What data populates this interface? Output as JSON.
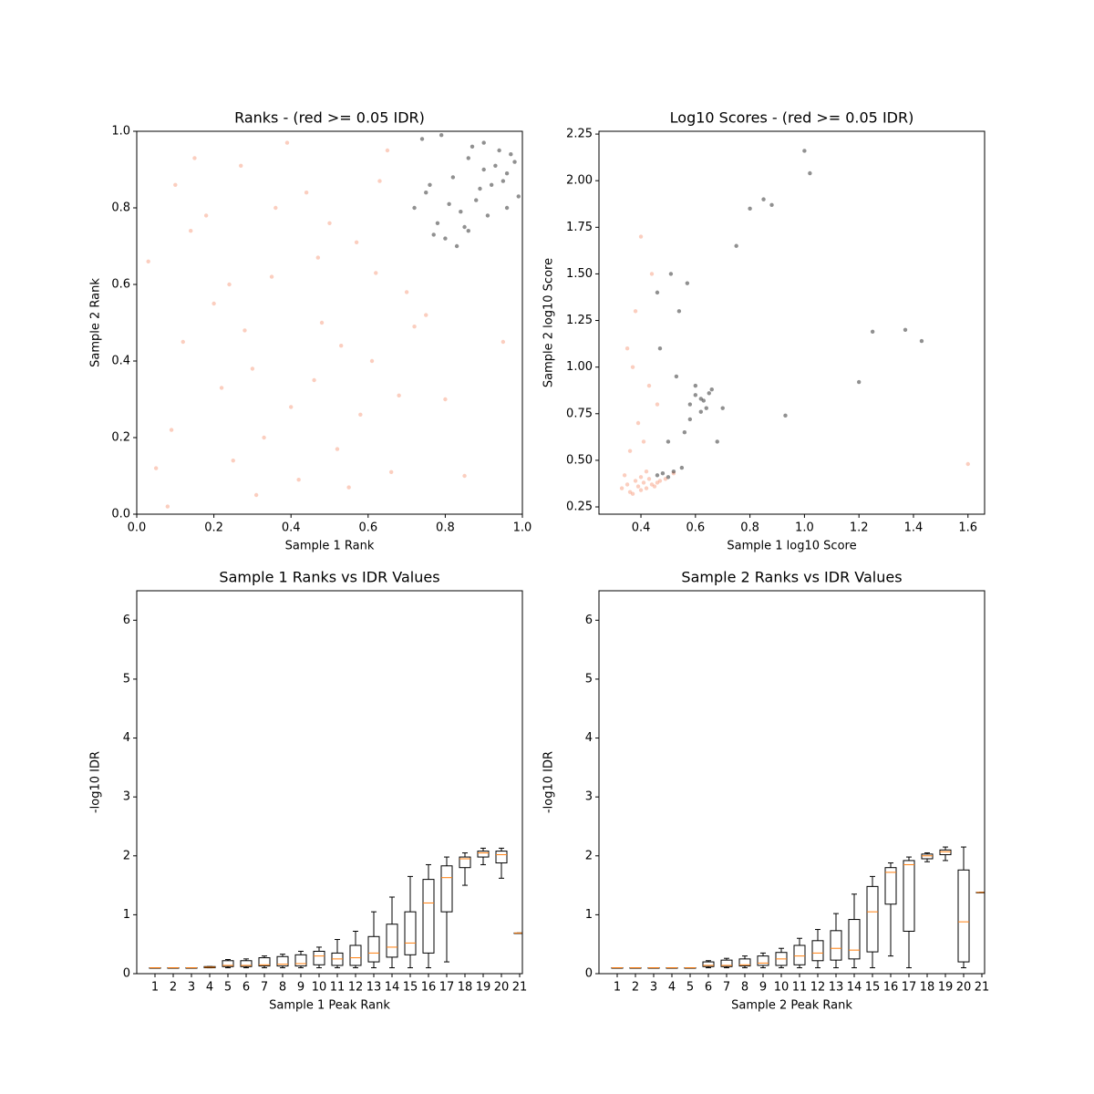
{
  "chart_data": [
    {
      "type": "scatter",
      "title": "Ranks - (red >= 0.05 IDR)",
      "xlabel": "Sample 1 Rank",
      "ylabel": "Sample 2 Rank",
      "xlim": [
        0,
        1
      ],
      "ylim": [
        0,
        1
      ],
      "xticks": [
        {
          "value": 0,
          "label": "0.0"
        },
        0.2,
        0.4,
        0.6,
        0.8,
        {
          "value": 1,
          "label": "1.0"
        }
      ],
      "yticks": [
        {
          "value": 0,
          "label": "0.0"
        },
        0.2,
        0.4,
        0.6,
        0.8,
        {
          "value": 1,
          "label": "1.0"
        }
      ],
      "series": [
        {
          "color": "#f4845f",
          "x": [
            0.05,
            0.12,
            0.18,
            0.22,
            0.27,
            0.31,
            0.35,
            0.4,
            0.44,
            0.48,
            0.52,
            0.57,
            0.61,
            0.65,
            0.7,
            0.03,
            0.09,
            0.15,
            0.2,
            0.25,
            0.3,
            0.36,
            0.42,
            0.47,
            0.53,
            0.58,
            0.63,
            0.68,
            0.72,
            0.08,
            0.14,
            0.24,
            0.33,
            0.39,
            0.46,
            0.55,
            0.62,
            0.1,
            0.28,
            0.5,
            0.66,
            0.75,
            0.8,
            0.85,
            0.95
          ],
          "values": [
            0.12,
            0.45,
            0.78,
            0.33,
            0.91,
            0.05,
            0.62,
            0.28,
            0.84,
            0.5,
            0.17,
            0.71,
            0.4,
            0.95,
            0.58,
            0.66,
            0.22,
            0.93,
            0.55,
            0.14,
            0.38,
            0.8,
            0.09,
            0.67,
            0.44,
            0.26,
            0.87,
            0.31,
            0.49,
            0.02,
            0.74,
            0.6,
            0.2,
            0.97,
            0.35,
            0.07,
            0.63,
            0.86,
            0.48,
            0.76,
            0.11,
            0.52,
            0.3,
            0.1,
            0.45
          ]
        },
        {
          "color": "#222222",
          "x": [
            0.72,
            0.75,
            0.78,
            0.8,
            0.82,
            0.84,
            0.86,
            0.88,
            0.9,
            0.92,
            0.94,
            0.96,
            0.98,
            0.74,
            0.77,
            0.81,
            0.85,
            0.87,
            0.89,
            0.91,
            0.93,
            0.95,
            0.97,
            0.99,
            0.79,
            0.83,
            0.9,
            0.96,
            0.76,
            0.86
          ],
          "values": [
            0.8,
            0.84,
            0.76,
            0.72,
            0.88,
            0.79,
            0.93,
            0.82,
            0.9,
            0.86,
            0.95,
            0.89,
            0.92,
            0.98,
            0.73,
            0.81,
            0.75,
            0.96,
            0.85,
            0.78,
            0.91,
            0.87,
            0.94,
            0.83,
            0.99,
            0.7,
            0.97,
            0.8,
            0.86,
            0.74
          ]
        }
      ]
    },
    {
      "type": "scatter",
      "title": "Log10 Scores - (red >= 0.05 IDR)",
      "xlabel": "Sample 1 log10 Score",
      "ylabel": "Sample 2 log10 Score",
      "xlim": [
        0.246,
        1.661
      ],
      "ylim": [
        0.211,
        2.265
      ],
      "xticks": [
        0.4,
        0.6,
        0.8,
        {
          "value": 1,
          "label": "1.0"
        },
        1.2,
        1.4,
        1.6
      ],
      "yticks": [
        0.25,
        {
          "value": 0.5,
          "label": "0.50"
        },
        0.75,
        {
          "value": 1,
          "label": "1.00"
        },
        1.25,
        {
          "value": 1.5,
          "label": "1.50"
        },
        1.75,
        {
          "value": 2,
          "label": "2.00"
        },
        2.25
      ],
      "series": [
        {
          "color": "#f4845f",
          "x": [
            0.33,
            0.35,
            0.36,
            0.38,
            0.39,
            0.4,
            0.41,
            0.42,
            0.43,
            0.44,
            0.45,
            0.47,
            0.34,
            0.37,
            0.4,
            0.42,
            0.46,
            0.49,
            0.36,
            0.39,
            0.43,
            0.35,
            0.38,
            0.41,
            0.44,
            0.46,
            0.52,
            1.6,
            0.4,
            0.37
          ],
          "values": [
            0.35,
            0.37,
            0.33,
            0.39,
            0.36,
            0.34,
            0.38,
            0.35,
            0.4,
            0.37,
            0.36,
            0.39,
            0.42,
            0.32,
            0.41,
            0.44,
            0.38,
            0.4,
            0.55,
            0.7,
            0.9,
            1.1,
            1.3,
            0.6,
            1.5,
            0.8,
            0.43,
            0.48,
            1.7,
            1.0
          ]
        },
        {
          "color": "#222222",
          "x": [
            0.46,
            0.48,
            0.5,
            0.52,
            0.55,
            0.58,
            0.6,
            0.62,
            0.64,
            0.66,
            0.58,
            0.6,
            0.62,
            0.63,
            0.65,
            0.56,
            0.5,
            0.47,
            0.53,
            0.68,
            0.7,
            0.75,
            0.8,
            0.85,
            0.88,
            0.93,
            1.0,
            1.02,
            1.2,
            1.25,
            1.37,
            1.43,
            0.46,
            0.51,
            0.54,
            0.57
          ],
          "values": [
            0.42,
            0.43,
            0.41,
            0.44,
            0.46,
            0.8,
            0.85,
            0.83,
            0.78,
            0.88,
            0.72,
            0.9,
            0.76,
            0.82,
            0.86,
            0.65,
            0.6,
            1.1,
            0.95,
            0.6,
            0.78,
            1.65,
            1.85,
            1.9,
            1.87,
            0.74,
            2.16,
            2.04,
            0.92,
            1.19,
            1.2,
            1.14,
            1.4,
            1.5,
            1.3,
            1.45
          ]
        }
      ]
    },
    {
      "type": "box",
      "title": "Sample 1 Ranks vs IDR Values",
      "xlabel": "Sample 1 Peak Rank",
      "ylabel": "-log10 IDR",
      "xlim": [
        0,
        21.15
      ],
      "ylim": [
        0,
        6.5
      ],
      "xticks": [
        1,
        2,
        3,
        4,
        5,
        6,
        7,
        8,
        9,
        10,
        11,
        12,
        13,
        14,
        15,
        16,
        17,
        18,
        19,
        20,
        21
      ],
      "yticks": [
        0,
        1,
        2,
        3,
        4,
        5,
        6
      ],
      "box_color": "#000000",
      "median_color": "#ff7f0e",
      "boxes": [
        {
          "whislo": 0.1,
          "q1": 0.1,
          "med": 0.1,
          "q3": 0.1,
          "whishi": 0.1
        },
        {
          "whislo": 0.1,
          "q1": 0.1,
          "med": 0.1,
          "q3": 0.1,
          "whishi": 0.1
        },
        {
          "whislo": 0.1,
          "q1": 0.1,
          "med": 0.1,
          "q3": 0.1,
          "whishi": 0.1
        },
        {
          "whislo": 0.1,
          "q1": 0.1,
          "med": 0.11,
          "q3": 0.12,
          "whishi": 0.12
        },
        {
          "whislo": 0.1,
          "q1": 0.12,
          "med": 0.14,
          "q3": 0.22,
          "whishi": 0.24
        },
        {
          "whislo": 0.1,
          "q1": 0.12,
          "med": 0.14,
          "q3": 0.22,
          "whishi": 0.25
        },
        {
          "whislo": 0.1,
          "q1": 0.13,
          "med": 0.15,
          "q3": 0.27,
          "whishi": 0.3
        },
        {
          "whislo": 0.1,
          "q1": 0.13,
          "med": 0.16,
          "q3": 0.29,
          "whishi": 0.33
        },
        {
          "whislo": 0.1,
          "q1": 0.13,
          "med": 0.17,
          "q3": 0.32,
          "whishi": 0.38
        },
        {
          "whislo": 0.1,
          "q1": 0.15,
          "med": 0.3,
          "q3": 0.38,
          "whishi": 0.45
        },
        {
          "whislo": 0.1,
          "q1": 0.14,
          "med": 0.25,
          "q3": 0.35,
          "whishi": 0.58
        },
        {
          "whislo": 0.1,
          "q1": 0.14,
          "med": 0.27,
          "q3": 0.48,
          "whishi": 0.72
        },
        {
          "whislo": 0.1,
          "q1": 0.2,
          "med": 0.35,
          "q3": 0.63,
          "whishi": 1.05
        },
        {
          "whislo": 0.1,
          "q1": 0.28,
          "med": 0.45,
          "q3": 0.84,
          "whishi": 1.3
        },
        {
          "whislo": 0.1,
          "q1": 0.32,
          "med": 0.52,
          "q3": 1.05,
          "whishi": 1.65
        },
        {
          "whislo": 0.1,
          "q1": 0.35,
          "med": 1.2,
          "q3": 1.6,
          "whishi": 1.85
        },
        {
          "whislo": 0.2,
          "q1": 1.05,
          "med": 1.63,
          "q3": 1.83,
          "whishi": 1.98
        },
        {
          "whislo": 1.5,
          "q1": 1.8,
          "med": 1.95,
          "q3": 1.98,
          "whishi": 2.05
        },
        {
          "whislo": 1.85,
          "q1": 1.98,
          "med": 2.05,
          "q3": 2.08,
          "whishi": 2.13
        },
        {
          "whislo": 1.62,
          "q1": 1.88,
          "med": 2.02,
          "q3": 2.08,
          "whishi": 2.13
        },
        {
          "whislo": 0.69,
          "q1": 0.69,
          "med": 0.69,
          "q3": 0.69,
          "whishi": 0.69
        }
      ]
    },
    {
      "type": "box",
      "title": "Sample 2 Ranks vs IDR Values",
      "xlabel": "Sample 2 Peak Rank",
      "ylabel": "-log10 IDR",
      "xlim": [
        0,
        21.15
      ],
      "ylim": [
        0,
        6.5
      ],
      "xticks": [
        1,
        2,
        3,
        4,
        5,
        6,
        7,
        8,
        9,
        10,
        11,
        12,
        13,
        14,
        15,
        16,
        17,
        18,
        19,
        20,
        21
      ],
      "yticks": [
        0,
        1,
        2,
        3,
        4,
        5,
        6
      ],
      "box_color": "#000000",
      "median_color": "#ff7f0e",
      "boxes": [
        {
          "whislo": 0.1,
          "q1": 0.1,
          "med": 0.1,
          "q3": 0.1,
          "whishi": 0.1
        },
        {
          "whislo": 0.1,
          "q1": 0.1,
          "med": 0.1,
          "q3": 0.1,
          "whishi": 0.1
        },
        {
          "whislo": 0.1,
          "q1": 0.1,
          "med": 0.1,
          "q3": 0.1,
          "whishi": 0.1
        },
        {
          "whislo": 0.1,
          "q1": 0.1,
          "med": 0.1,
          "q3": 0.1,
          "whishi": 0.1
        },
        {
          "whislo": 0.1,
          "q1": 0.1,
          "med": 0.1,
          "q3": 0.1,
          "whishi": 0.1
        },
        {
          "whislo": 0.1,
          "q1": 0.12,
          "med": 0.14,
          "q3": 0.2,
          "whishi": 0.22
        },
        {
          "whislo": 0.1,
          "q1": 0.12,
          "med": 0.14,
          "q3": 0.23,
          "whishi": 0.26
        },
        {
          "whislo": 0.1,
          "q1": 0.13,
          "med": 0.15,
          "q3": 0.25,
          "whishi": 0.3
        },
        {
          "whislo": 0.1,
          "q1": 0.14,
          "med": 0.18,
          "q3": 0.3,
          "whishi": 0.35
        },
        {
          "whislo": 0.1,
          "q1": 0.14,
          "med": 0.25,
          "q3": 0.36,
          "whishi": 0.43
        },
        {
          "whislo": 0.1,
          "q1": 0.15,
          "med": 0.3,
          "q3": 0.48,
          "whishi": 0.6
        },
        {
          "whislo": 0.1,
          "q1": 0.22,
          "med": 0.35,
          "q3": 0.56,
          "whishi": 0.75
        },
        {
          "whislo": 0.1,
          "q1": 0.23,
          "med": 0.43,
          "q3": 0.73,
          "whishi": 1.02
        },
        {
          "whislo": 0.1,
          "q1": 0.25,
          "med": 0.4,
          "q3": 0.92,
          "whishi": 1.35
        },
        {
          "whislo": 0.1,
          "q1": 0.37,
          "med": 1.05,
          "q3": 1.48,
          "whishi": 1.65
        },
        {
          "whislo": 0.3,
          "q1": 1.18,
          "med": 1.72,
          "q3": 1.8,
          "whishi": 1.88
        },
        {
          "whislo": 0.1,
          "q1": 0.72,
          "med": 1.85,
          "q3": 1.92,
          "whishi": 1.98
        },
        {
          "whislo": 1.9,
          "q1": 1.95,
          "med": 2.0,
          "q3": 2.03,
          "whishi": 2.05
        },
        {
          "whislo": 1.92,
          "q1": 2.02,
          "med": 2.07,
          "q3": 2.1,
          "whishi": 2.15
        },
        {
          "whislo": 0.1,
          "q1": 0.2,
          "med": 0.88,
          "q3": 1.76,
          "whishi": 2.15
        },
        {
          "whislo": 1.38,
          "q1": 1.38,
          "med": 1.38,
          "q3": 1.38,
          "whishi": 1.38
        }
      ]
    }
  ]
}
